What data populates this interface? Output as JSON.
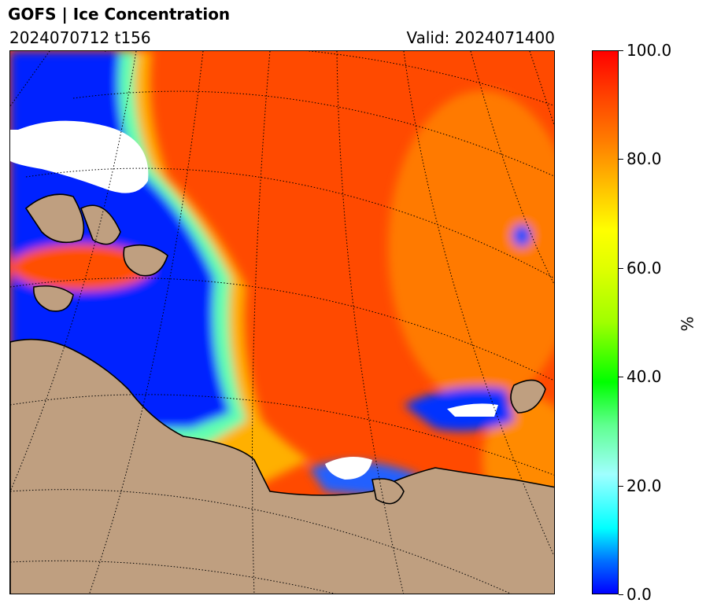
{
  "header": {
    "title": "GOFS  |  Ice Concentration",
    "init_label": "2024070712 t156",
    "valid_label": "Valid: 2024071400"
  },
  "colorbar": {
    "unit": "%",
    "min": 0,
    "max": 100,
    "ticks": [
      "0.0",
      "20.0",
      "40.0",
      "60.0",
      "80.0",
      "100.0"
    ],
    "tick_values": [
      0,
      20,
      40,
      60,
      80,
      100
    ]
  },
  "colors": {
    "ice_high": "#ff4a00",
    "ice_mid": "#ffa000",
    "ice_low": "#0020ff",
    "land": "#bf9f80",
    "no_data": "#ffffff"
  }
}
